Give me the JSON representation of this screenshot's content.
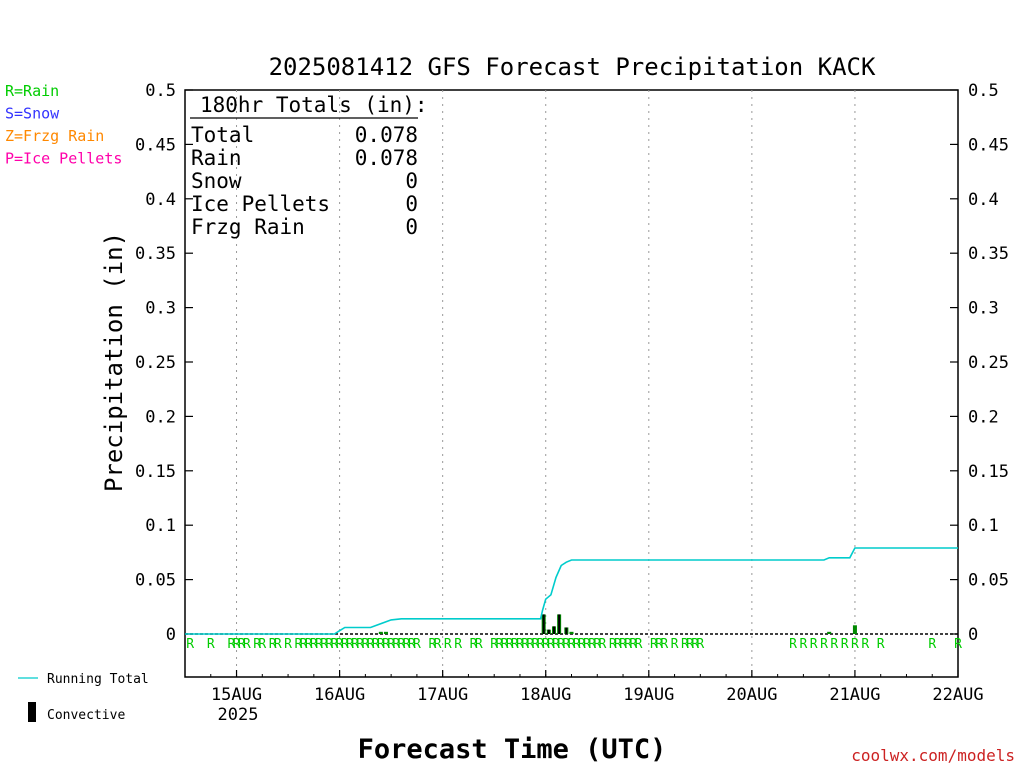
{
  "chart_data": {
    "type": "line",
    "title": "2025081412 GFS Forecast Precipitation KACK",
    "ylabel": "Precipitation (in)",
    "xlabel": "Forecast Time (UTC)",
    "ylim": [
      0,
      0.5
    ],
    "y_ticks": [
      "0",
      "0.05",
      "0.1",
      "0.15",
      "0.2",
      "0.25",
      "0.3",
      "0.35",
      "0.4",
      "0.45",
      "0.5"
    ],
    "x_tick_labels": [
      "15AUG",
      "16AUG",
      "17AUG",
      "18AUG",
      "19AUG",
      "20AUG",
      "21AUG",
      "22AUG"
    ],
    "x_year_label": "2025",
    "x_range_days": [
      14.5,
      22.0
    ],
    "grid": "vertical dotted",
    "legend_types": [
      {
        "text": "R=Rain",
        "color": "#00cc00"
      },
      {
        "text": "S=Snow",
        "color": "#3333ff"
      },
      {
        "text": "Z=Frzg Rain",
        "color": "#ff8800"
      },
      {
        "text": "P=Ice Pellets",
        "color": "#ff00aa"
      }
    ],
    "legend_series": {
      "running_total": "Running Total",
      "convective": "Convective"
    },
    "totals": {
      "header": "180hr Totals (in):",
      "rows": [
        {
          "label": "Total",
          "value": "0.078"
        },
        {
          "label": "Rain",
          "value": "0.078"
        },
        {
          "label": "Snow",
          "value": "0"
        },
        {
          "label": "Ice Pellets",
          "value": "0"
        },
        {
          "label": "Frzg Rain",
          "value": "0"
        }
      ]
    },
    "running_total": {
      "color": "#00cccc",
      "x": [
        14.5,
        15.95,
        16.0,
        16.05,
        16.3,
        16.5,
        16.6,
        17.95,
        17.97,
        18.0,
        18.05,
        18.1,
        18.15,
        18.2,
        18.25,
        18.3,
        20.7,
        20.75,
        20.95,
        21.0,
        22.0
      ],
      "y": [
        0.0,
        0.0,
        0.003,
        0.006,
        0.006,
        0.013,
        0.014,
        0.014,
        0.022,
        0.032,
        0.036,
        0.052,
        0.063,
        0.066,
        0.068,
        0.068,
        0.068,
        0.07,
        0.07,
        0.079,
        0.079
      ]
    },
    "precip_bars": {
      "color": "#008800",
      "x": [
        16.4,
        16.45,
        17.98,
        18.03,
        18.08,
        18.13,
        18.2,
        18.25,
        20.75,
        21.0
      ],
      "y": [
        0.002,
        0.002,
        0.018,
        0.004,
        0.007,
        0.018,
        0.006,
        0.002,
        0.002,
        0.008
      ]
    },
    "convective_bars": {
      "color": "#000000",
      "x": [
        17.98,
        18.03,
        18.08,
        18.13,
        18.2
      ],
      "y": [
        0.018,
        0.004,
        0.007,
        0.018,
        0.006
      ]
    },
    "type_markers": {
      "color": "#00cc00",
      "symbol": "R",
      "x": [
        14.55,
        14.75,
        14.95,
        15.0,
        15.05,
        15.1,
        15.2,
        15.25,
        15.35,
        15.4,
        15.5,
        15.6,
        15.65,
        15.7,
        15.75,
        15.8,
        15.85,
        15.9,
        15.95,
        16.0,
        16.05,
        16.1,
        16.15,
        16.2,
        16.25,
        16.3,
        16.35,
        16.4,
        16.45,
        16.5,
        16.55,
        16.6,
        16.65,
        16.7,
        16.75,
        16.9,
        16.95,
        17.05,
        17.15,
        17.3,
        17.35,
        17.5,
        17.55,
        17.6,
        17.65,
        17.7,
        17.75,
        17.8,
        17.85,
        17.9,
        17.95,
        18.0,
        18.05,
        18.1,
        18.15,
        18.2,
        18.25,
        18.3,
        18.35,
        18.4,
        18.45,
        18.5,
        18.55,
        18.65,
        18.7,
        18.75,
        18.8,
        18.85,
        18.9,
        19.05,
        19.1,
        19.15,
        19.25,
        19.35,
        19.5,
        19.4,
        19.45,
        20.4,
        20.5,
        20.6,
        20.7,
        20.8,
        20.9,
        21.0,
        21.1,
        21.25,
        21.75,
        22.0
      ]
    }
  },
  "footer": {
    "credit": "coolwx.com/models"
  }
}
